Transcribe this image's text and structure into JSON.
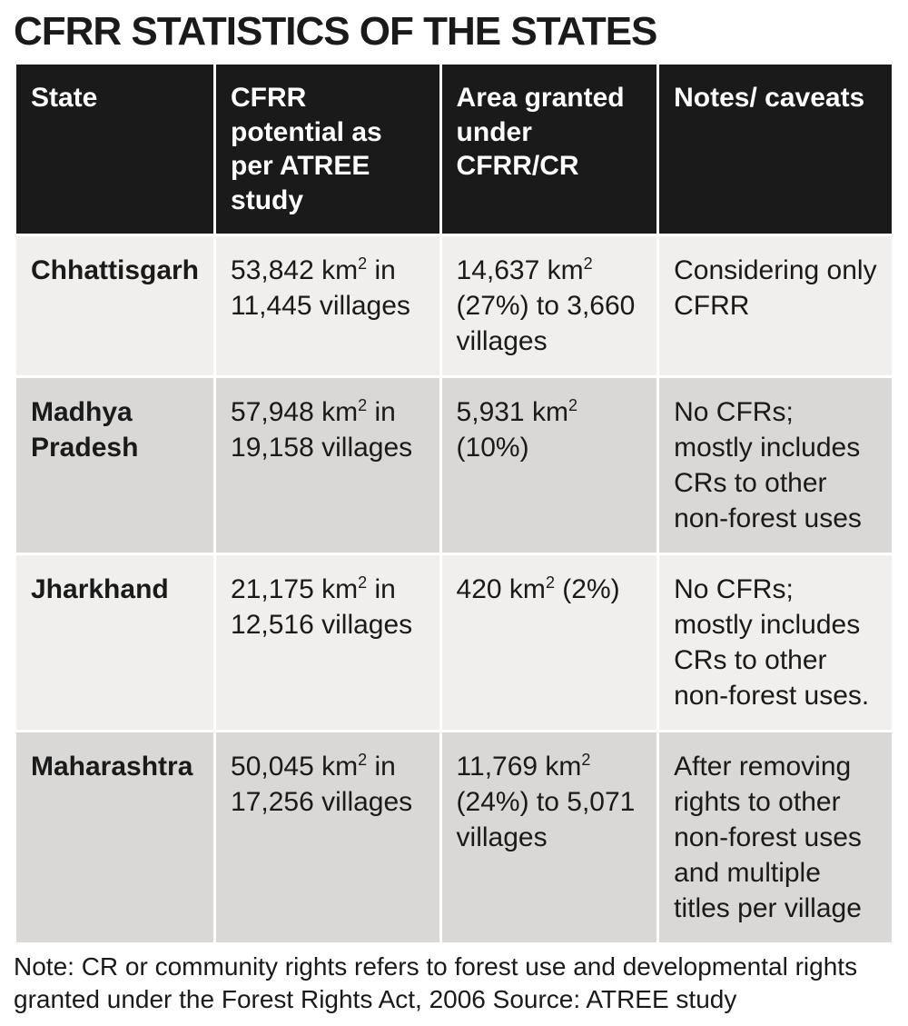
{
  "title": "CFRR STATISTICS OF THE STATES",
  "table": {
    "columns": {
      "state": "State",
      "potential": "CFRR potential as per ATREE study",
      "area": "Area granted under CFRR/CR",
      "notes": "Notes/ caveats"
    },
    "rows": [
      {
        "state": "Chhattisgarh",
        "potential": "53,842 km² in 11,445 villages",
        "area": "14,637 km² (27%) to 3,660 villages",
        "notes": "Considering only CFRR"
      },
      {
        "state": "Madhya Pradesh",
        "potential": "57,948 km² in 19,158 villages",
        "area": "5,931 km² (10%)",
        "notes": "No CFRs; mostly includes CRs to other non-forest uses"
      },
      {
        "state": "Jharkhand",
        "potential": "21,175 km² in 12,516 villages",
        "area": "420 km² (2%)",
        "notes": "No CFRs; mostly includes CRs to other non-forest uses."
      },
      {
        "state": "Maharashtra",
        "potential": "50,045 km² in 17,256 villages",
        "area": "11,769 km² (24%) to 5,071 villages",
        "notes": "After removing rights to other non-forest uses and multiple titles per village"
      }
    ]
  },
  "footnote": "Note: CR or community rights refers to forest use and developmental rights granted under the Forest Rights Act, 2006  Source: ATREE study",
  "styling": {
    "header_bg": "#1a1a1a",
    "header_fg": "#ffffff",
    "row_odd_bg": "#f0efed",
    "row_even_bg": "#d9d8d6",
    "text_color": "#1a1a1a",
    "title_fontsize": 44,
    "cell_fontsize": 30,
    "footnote_fontsize": 28,
    "column_widths_pct": [
      22,
      26,
      25,
      27
    ]
  }
}
